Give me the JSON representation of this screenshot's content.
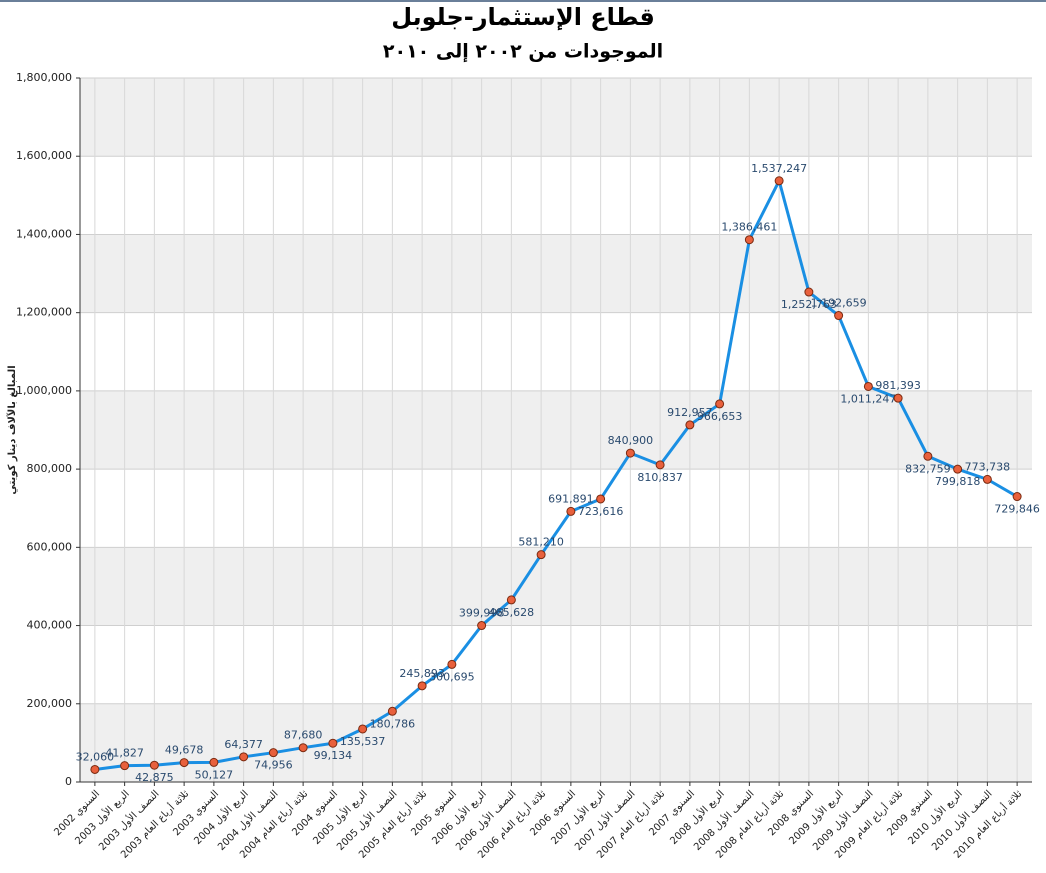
{
  "chart_data": {
    "type": "line",
    "title": "قطاع الإستثمار-جلوبل",
    "subtitle": "الموجودات من ٢٠٠٢ إلى ٢٠١٠",
    "y_label": "المبالغ بالآلاف دينار كويتي",
    "categories": [
      "السنوي 2002",
      "الربع الأول 2003",
      "النصف الأول 2003",
      "ثلاثة أرباع العام 2003",
      "السنوي 2003",
      "الربع الأول 2004",
      "النصف الأول 2004",
      "ثلاثة أرباع العام 2004",
      "السنوي 2004",
      "الربع الأول 2005",
      "النصف الأول 2005",
      "ثلاثة أرباع العام 2005",
      "السنوي 2005",
      "الربع الأول 2006",
      "النصف الأول 2006",
      "ثلاثة أرباع العام 2006",
      "السنوي 2006",
      "الربع الأول 2007",
      "النصف الأول 2007",
      "ثلاثة أرباع العام 2007",
      "السنوي 2007",
      "الربع الأول 2008",
      "النصف الأول 2008",
      "ثلاثة أرباع العام 2008",
      "السنوي 2008",
      "الربع الأول 2009",
      "النصف الأول 2009",
      "ثلاثة أرباع العام 2009",
      "السنوي 2009",
      "الربع الأول 2010",
      "النصف الأول 2010",
      "ثلاثة أرباع العام 2010"
    ],
    "values": [
      32060,
      41827,
      42875,
      49678,
      50127,
      64377,
      74956,
      87680,
      99134,
      135537,
      180786,
      245893,
      300695,
      399998,
      465628,
      581210,
      691891,
      723616,
      840900,
      810837,
      912957,
      966653,
      1386461,
      1537247,
      1252763,
      1192659,
      1011247,
      981393,
      832759,
      799818,
      773738,
      729846
    ],
    "value_labels": [
      "32,060",
      "41,827",
      "42,875",
      "49,678",
      "50,127",
      "64,377",
      "74,956",
      "87,680",
      "99,134",
      "135,537",
      "180,786",
      "245,893",
      "300,695",
      "399,998",
      "465,628",
      "581,210",
      "691,891",
      "723,616",
      "840,900",
      "810,837",
      "912,957",
      "966,653",
      "1,386,461",
      "1,537,247",
      "1,252,763",
      "1,192,659",
      "1,011,247",
      "981,393",
      "832,759",
      "799,818",
      "773,738",
      "729,846"
    ],
    "color": "#1a8fe3",
    "marker_color": "#e8603c",
    "ylim": [
      0,
      1800000
    ],
    "yticks": [
      0,
      {
        "value": 200000,
        "label": "200,000"
      },
      {
        "value": 400000,
        "label": "400,000"
      },
      {
        "value": 600000,
        "label": "600,000"
      },
      {
        "value": 800000,
        "label": "800,000"
      },
      {
        "value": 1000000,
        "label": "1,000,000"
      },
      {
        "value": 1200000,
        "label": "1,200,000"
      },
      {
        "value": 1400000,
        "label": "1,400,000"
      },
      {
        "value": 1600000,
        "label": "1,600,000"
      },
      {
        "value": 1800000,
        "label": "1,800,000"
      }
    ],
    "grid": true
  }
}
